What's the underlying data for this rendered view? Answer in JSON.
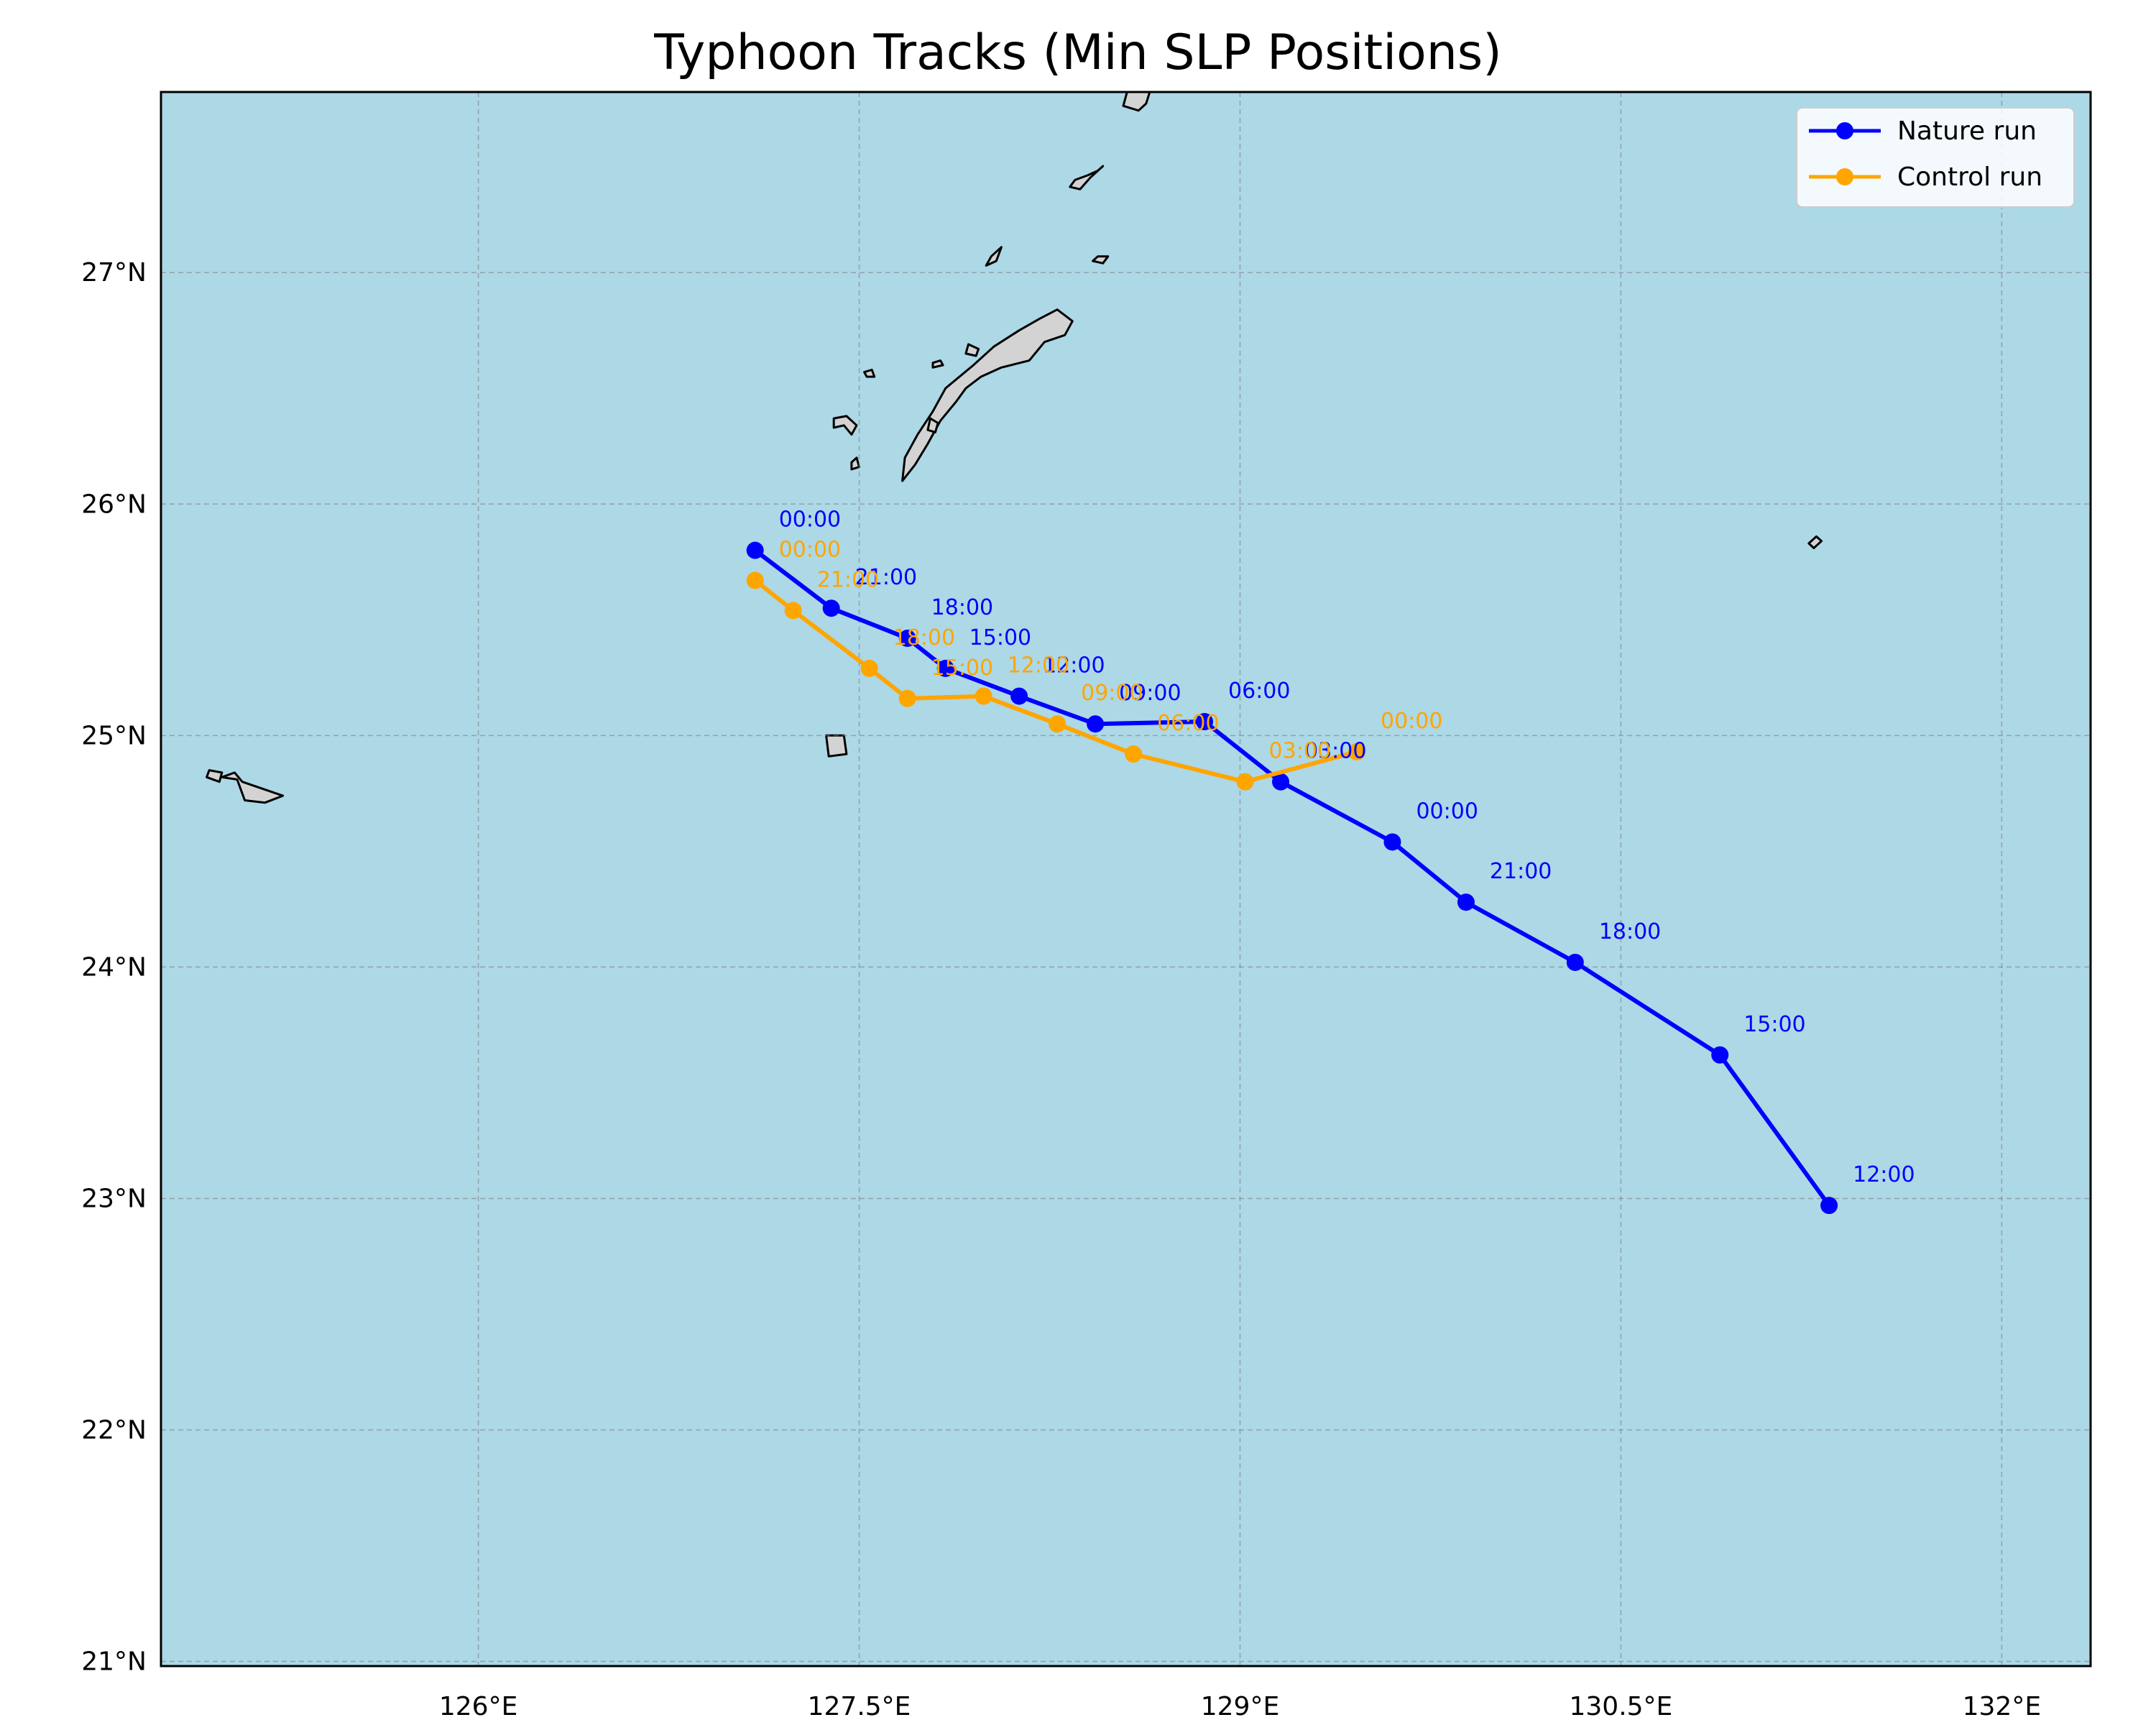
{
  "title": "Typhoon Tracks (Min SLP Positions)",
  "map": {
    "projection": "PlateCarree",
    "lon_range": [
      124.75,
      132.35
    ],
    "lat_range": [
      20.98,
      27.78
    ],
    "lon_ticks": [
      126,
      127.5,
      129,
      130.5,
      132
    ],
    "lon_tick_labels": [
      "126°E",
      "127.5°E",
      "129°E",
      "130.5°E",
      "132°E"
    ],
    "lat_ticks": [
      21,
      22,
      23,
      24,
      25,
      26,
      27
    ],
    "lat_tick_labels": [
      "21°N",
      "22°N",
      "23°N",
      "24°N",
      "25°N",
      "26°N",
      "27°N"
    ],
    "ocean_color": "#add8e6",
    "land_color": "#d3d3d3",
    "coastline_color": "#000000",
    "gridlines": "dashed"
  },
  "legend": {
    "location": "upper right",
    "entries": [
      {
        "label": "Nature run",
        "color": "#0000ff"
      },
      {
        "label": "Control run",
        "color": "#ffa500"
      }
    ]
  },
  "chart_data": {
    "type": "line",
    "title": "Typhoon Tracks (Min SLP Positions)",
    "xlabel": "",
    "ylabel": "",
    "xlim": [
      124.75,
      132.35
    ],
    "ylim": [
      20.98,
      27.78
    ],
    "grid": true,
    "legend_position": "top-right",
    "series": [
      {
        "name": "Nature run",
        "color": "#0000ff",
        "points": [
          {
            "lon": 131.32,
            "lat": 22.97,
            "label": "12:00"
          },
          {
            "lon": 130.89,
            "lat": 23.62,
            "label": "15:00"
          },
          {
            "lon": 130.32,
            "lat": 24.02,
            "label": "18:00"
          },
          {
            "lon": 129.89,
            "lat": 24.28,
            "label": "21:00"
          },
          {
            "lon": 129.6,
            "lat": 24.54,
            "label": "00:00"
          },
          {
            "lon": 129.16,
            "lat": 24.8,
            "label": "03:00"
          },
          {
            "lon": 128.86,
            "lat": 25.06,
            "label": "06:00"
          },
          {
            "lon": 128.43,
            "lat": 25.05,
            "label": "09:00"
          },
          {
            "lon": 128.13,
            "lat": 25.17,
            "label": "12:00"
          },
          {
            "lon": 127.84,
            "lat": 25.29,
            "label": "15:00"
          },
          {
            "lon": 127.69,
            "lat": 25.42,
            "label": "18:00"
          },
          {
            "lon": 127.39,
            "lat": 25.55,
            "label": "21:00"
          },
          {
            "lon": 127.09,
            "lat": 25.8,
            "label": "00:00"
          }
        ]
      },
      {
        "name": "Control run",
        "color": "#ffa500",
        "points": [
          {
            "lon": 129.46,
            "lat": 24.93,
            "label": "00:00"
          },
          {
            "lon": 129.02,
            "lat": 24.8,
            "label": "03:00"
          },
          {
            "lon": 128.58,
            "lat": 24.92,
            "label": "06:00"
          },
          {
            "lon": 128.28,
            "lat": 25.05,
            "label": "09:00"
          },
          {
            "lon": 127.99,
            "lat": 25.17,
            "label": "12:00"
          },
          {
            "lon": 127.69,
            "lat": 25.16,
            "label": "15:00"
          },
          {
            "lon": 127.54,
            "lat": 25.29,
            "label": "18:00"
          },
          {
            "lon": 127.24,
            "lat": 25.54,
            "label": "21:00"
          },
          {
            "lon": 127.09,
            "lat": 25.67,
            "label": "00:00"
          }
        ]
      }
    ]
  },
  "islands": [
    [
      [
        128.28,
        26.84
      ],
      [
        128.34,
        26.79
      ],
      [
        128.31,
        26.73
      ],
      [
        128.23,
        26.7
      ],
      [
        128.17,
        26.62
      ],
      [
        128.06,
        26.59
      ],
      [
        127.98,
        26.55
      ],
      [
        127.92,
        26.5
      ],
      [
        127.88,
        26.44
      ],
      [
        127.82,
        26.36
      ],
      [
        127.77,
        26.26
      ],
      [
        127.72,
        26.17
      ],
      [
        127.67,
        26.1
      ],
      [
        127.68,
        26.2
      ],
      [
        127.73,
        26.3
      ],
      [
        127.79,
        26.4
      ],
      [
        127.84,
        26.5
      ],
      [
        127.95,
        26.6
      ],
      [
        128.03,
        26.68
      ],
      [
        128.13,
        26.75
      ],
      [
        128.21,
        26.8
      ]
    ],
    [
      [
        127.37,
        25.0
      ],
      [
        127.44,
        25.0
      ],
      [
        127.45,
        24.92
      ],
      [
        127.38,
        24.91
      ]
    ],
    [
      [
        127.93,
        26.69
      ],
      [
        127.97,
        26.67
      ],
      [
        127.96,
        26.64
      ],
      [
        127.92,
        26.65
      ]
    ],
    [
      [
        127.78,
        26.37
      ],
      [
        127.81,
        26.35
      ],
      [
        127.8,
        26.31
      ],
      [
        127.77,
        26.32
      ]
    ],
    [
      [
        124.99,
        24.82
      ],
      [
        125.04,
        24.84
      ],
      [
        125.07,
        24.8
      ],
      [
        125.23,
        24.74
      ],
      [
        125.16,
        24.71
      ],
      [
        125.08,
        24.72
      ],
      [
        125.05,
        24.81
      ]
    ],
    [
      [
        124.94,
        24.85
      ],
      [
        124.99,
        24.84
      ],
      [
        124.98,
        24.8
      ],
      [
        124.93,
        24.82
      ]
    ],
    [
      [
        127.4,
        26.37
      ],
      [
        127.45,
        26.38
      ],
      [
        127.49,
        26.34
      ],
      [
        127.47,
        26.3
      ],
      [
        127.44,
        26.34
      ],
      [
        127.4,
        26.33
      ]
    ],
    [
      [
        127.79,
        26.61
      ],
      [
        127.82,
        26.62
      ],
      [
        127.83,
        26.6
      ],
      [
        127.79,
        26.59
      ]
    ],
    [
      [
        128.0,
        27.03
      ],
      [
        128.04,
        27.05
      ],
      [
        128.06,
        27.11
      ],
      [
        128.02,
        27.07
      ]
    ],
    [
      [
        128.35,
        27.4
      ],
      [
        128.4,
        27.42
      ],
      [
        128.44,
        27.44
      ],
      [
        128.46,
        27.46
      ],
      [
        128.41,
        27.41
      ],
      [
        128.37,
        27.36
      ],
      [
        128.33,
        27.37
      ]
    ],
    [
      [
        128.44,
        27.07
      ],
      [
        128.48,
        27.07
      ],
      [
        128.46,
        27.04
      ],
      [
        128.42,
        27.05
      ]
    ],
    [
      [
        128.54,
        27.72
      ],
      [
        128.6,
        27.7
      ],
      [
        128.63,
        27.73
      ],
      [
        128.65,
        27.8
      ],
      [
        128.56,
        27.8
      ]
    ],
    [
      [
        127.52,
        26.57
      ],
      [
        127.55,
        26.58
      ],
      [
        127.56,
        26.55
      ],
      [
        127.53,
        26.55
      ]
    ],
    [
      [
        127.47,
        26.18
      ],
      [
        127.49,
        26.2
      ],
      [
        127.5,
        26.16
      ],
      [
        127.47,
        26.15
      ]
    ],
    [
      [
        131.24,
        25.83
      ],
      [
        131.27,
        25.86
      ],
      [
        131.29,
        25.84
      ],
      [
        131.26,
        25.81
      ]
    ]
  ]
}
